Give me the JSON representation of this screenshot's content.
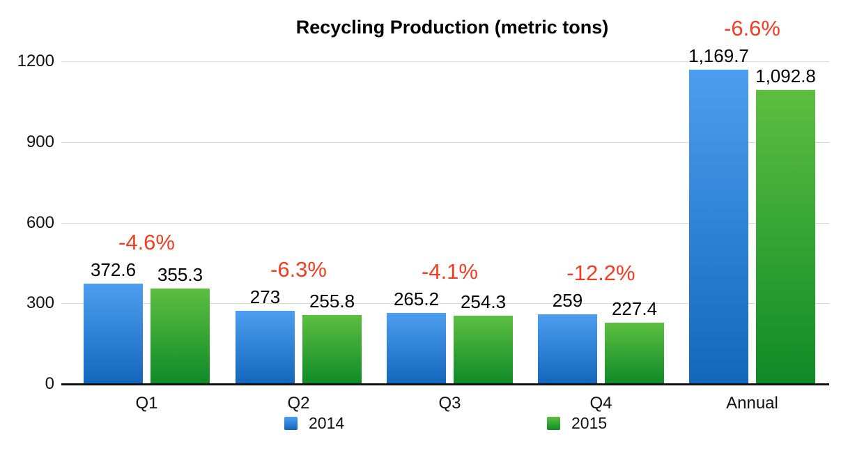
{
  "title": "Recycling Production (metric tons)",
  "legend": {
    "items": [
      {
        "label": "2014",
        "series": "2014"
      },
      {
        "label": "2015",
        "series": "2015"
      }
    ]
  },
  "colors": {
    "series_2014_top": "#4d9ef0",
    "series_2014_bottom": "#1366bc",
    "series_2015_top": "#5cbf40",
    "series_2015_bottom": "#0f8a28",
    "annotation_red": "#f53c20",
    "gridline": "#d9d9d9",
    "axis": "#111111",
    "text": "#000000"
  },
  "chart_data": {
    "type": "bar",
    "categories": [
      "Q1",
      "Q2",
      "Q3",
      "Q4",
      "Annual"
    ],
    "series": [
      {
        "name": "2014",
        "values": [
          372.6,
          273,
          265.2,
          259,
          1169.7
        ],
        "labels": [
          "372.6",
          "273",
          "265.2",
          "259",
          "1,169.7"
        ]
      },
      {
        "name": "2015",
        "values": [
          355.3,
          255.8,
          254.3,
          227.4,
          1092.8
        ],
        "labels": [
          "355.3",
          "255.8",
          "254.3",
          "227.4",
          "1,092.8"
        ]
      }
    ],
    "annotations": [
      "-4.6%",
      "-6.3%",
      "-4.1%",
      "-12.2%",
      "-6.6%"
    ],
    "title": "Recycling Production (metric tons)",
    "xlabel": "",
    "ylabel": "",
    "ylim": [
      0,
      1200
    ],
    "yticks": [
      0,
      300,
      600,
      900,
      1200
    ],
    "grid": true,
    "legend_position": "bottom"
  }
}
